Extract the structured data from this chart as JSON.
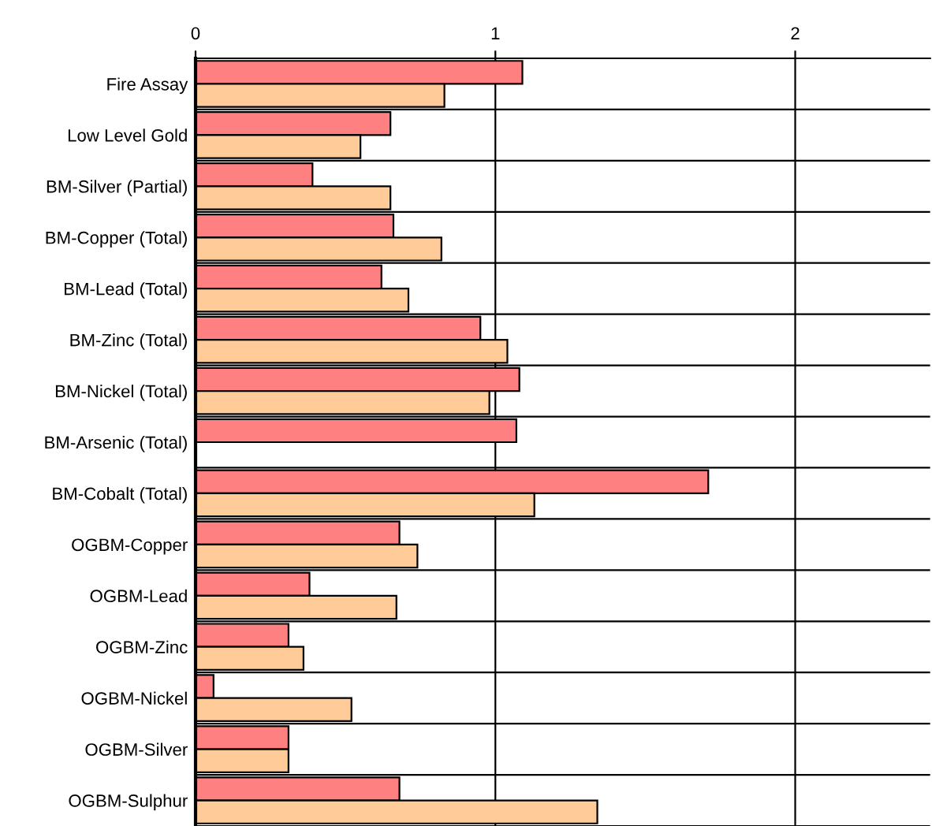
{
  "chart_data": {
    "type": "bar",
    "orientation": "horizontal",
    "categories": [
      "Fire Assay",
      "Low Level Gold",
      "BM-Silver (Partial)",
      "BM-Copper (Total)",
      "BM-Lead (Total)",
      "BM-Zinc (Total)",
      "BM-Nickel (Total)",
      "BM-Arsenic (Total)",
      "BM-Cobalt (Total)",
      "OGBM-Copper",
      "OGBM-Lead",
      "OGBM-Zinc",
      "OGBM-Nickel",
      "OGBM-Silver",
      "OGBM-Sulphur"
    ],
    "series": [
      {
        "color": "#ff8080",
        "values": [
          1.09,
          0.65,
          0.39,
          0.66,
          0.62,
          0.95,
          1.08,
          1.07,
          1.71,
          0.68,
          0.38,
          0.31,
          0.06,
          0.31,
          0.68
        ]
      },
      {
        "color": "#ffcc99",
        "values": [
          0.83,
          0.55,
          0.65,
          0.82,
          0.71,
          1.04,
          0.98,
          null,
          1.13,
          0.74,
          0.67,
          0.36,
          0.52,
          0.31,
          1.34
        ]
      }
    ],
    "xlim": [
      0,
      2.45
    ],
    "xticks": [
      0,
      1,
      2
    ],
    "grid": true,
    "legend": false
  }
}
